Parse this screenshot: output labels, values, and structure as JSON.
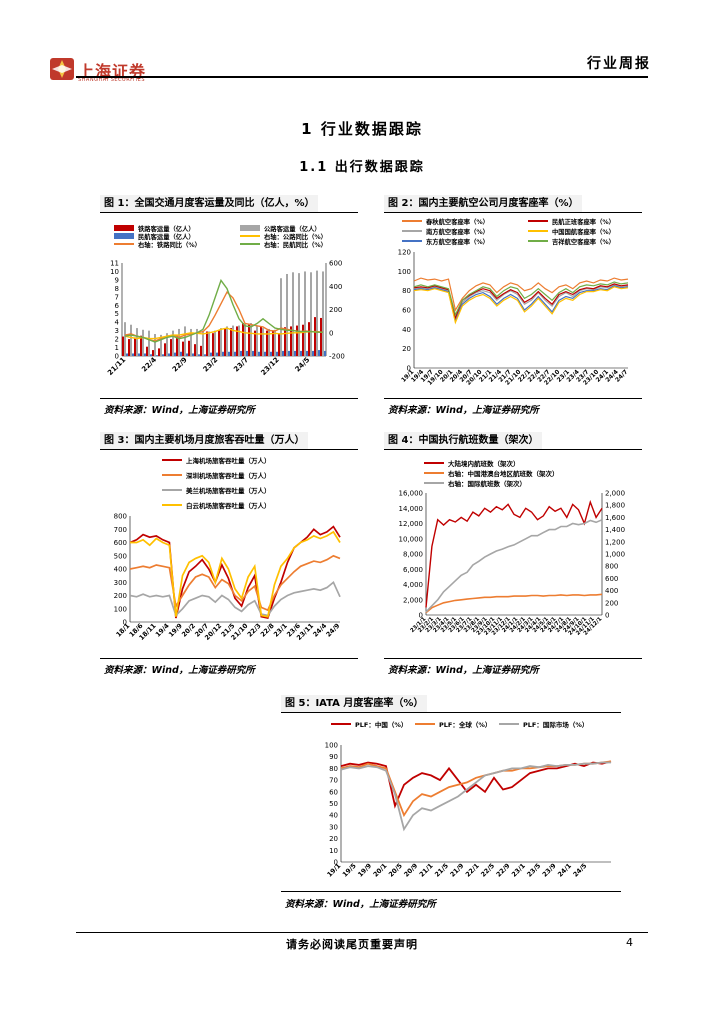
{
  "header": {
    "brand_cn": "上海证券",
    "brand_en": "SHANGHAI SECURITIES",
    "report_type": "行业周报",
    "brand_color": "#c0392b"
  },
  "section": {
    "title": "1  行业数据跟踪",
    "subtitle": "1.1  出行数据跟踪"
  },
  "footer": {
    "disclaimer": "请务必阅读尾页重要声明",
    "page": "4"
  },
  "figures": [
    {
      "title": "图 1：全国交通月度客运量及同比（亿人，%）",
      "source": "资料来源：Wind，上海证券研究所"
    },
    {
      "title": "图 2：国内主要航空公司月度客座率（%）",
      "source": "资料来源：Wind，上海证券研究所"
    },
    {
      "title": "图 3：国内主要机场月度旅客吞吐量（万人）",
      "source": "资料来源：Wind，上海证券研究所"
    },
    {
      "title": "图 4：中国执行航班数量（架次）",
      "source": "资料来源：Wind，上海证券研究所"
    },
    {
      "title": "图 5：IATA 月度客座率（%）",
      "source": "资料来源：Wind，上海证券研究所"
    }
  ],
  "chart_data": [
    {
      "type": "bar",
      "legend": [
        "铁路客运量（亿人）",
        "公路客运量（亿人）",
        "民航客运量（亿人）",
        "右轴：铁路同比（%）",
        "右轴：公路同比（%）",
        "右轴：民航同比（%）"
      ],
      "colors": [
        "#c00000",
        "#a6a6a6",
        "#4472c4",
        "#ed7d31",
        "#ffc000",
        "#70ad47"
      ],
      "x_ticks": [
        "21/11",
        "22/4",
        "22/9",
        "23/2",
        "23/7",
        "23/12",
        "24/5"
      ],
      "ylim_left": [
        0,
        11
      ],
      "yticks_left": [
        0,
        1,
        2,
        3,
        4,
        5,
        6,
        7,
        8,
        9,
        10,
        11
      ],
      "ylim_right": [
        -200,
        600
      ],
      "yticks_right": [
        -200,
        0,
        200,
        400,
        600
      ],
      "series": [
        {
          "name": "铁路客运量（亿人）",
          "values": [
            2.3,
            2.0,
            2.2,
            2.4,
            1.1,
            0.7,
            0.9,
            1.5,
            2.0,
            2.4,
            1.7,
            1.8,
            1.4,
            1.2,
            2.9,
            2.7,
            3.0,
            3.2,
            3.3,
            3.5,
            3.9,
            3.8,
            3.0,
            3.5,
            3.0,
            2.9,
            2.7,
            3.4,
            3.5,
            3.6,
            3.7,
            4.0,
            4.6,
            4.5
          ]
        },
        {
          "name": "公路客运量（亿人）",
          "values": [
            4.0,
            3.7,
            3.3,
            3.1,
            3.0,
            2.6,
            2.5,
            2.7,
            3.0,
            3.2,
            3.5,
            3.2,
            3.2,
            3.0,
            2.9,
            3.0,
            3.3,
            3.5,
            3.6,
            3.6,
            3.8,
            3.9,
            3.6,
            3.3,
            3.2,
            3.1,
            9.2,
            9.7,
            9.9,
            9.8,
            10.0,
            9.9,
            10.1,
            10.0
          ]
        },
        {
          "name": "民航客运量（亿人）",
          "values": [
            0.3,
            0.3,
            0.3,
            0.3,
            0.2,
            0.1,
            0.2,
            0.3,
            0.4,
            0.5,
            0.3,
            0.3,
            0.2,
            0.2,
            0.4,
            0.4,
            0.5,
            0.5,
            0.5,
            0.6,
            0.6,
            0.6,
            0.5,
            0.5,
            0.5,
            0.5,
            0.6,
            0.6,
            0.6,
            0.6,
            0.6,
            0.6,
            0.7,
            0.6
          ]
        },
        {
          "name": "右轴：铁路同比（%）",
          "values": [
            -20,
            -10,
            -30,
            -40,
            -60,
            -70,
            -50,
            -30,
            -20,
            -40,
            -20,
            -10,
            0,
            10,
            60,
            150,
            250,
            350,
            300,
            200,
            80,
            70,
            60,
            50,
            20,
            15,
            40,
            30,
            20,
            10,
            15,
            10,
            10,
            5
          ]
        },
        {
          "name": "右轴：公路同比（%）",
          "values": [
            -30,
            -40,
            -50,
            -40,
            -50,
            -50,
            -40,
            -30,
            -20,
            -20,
            -10,
            0,
            -5,
            -10,
            0,
            10,
            30,
            40,
            20,
            10,
            0,
            -5,
            -10,
            -10,
            -10,
            -5,
            -10,
            -5,
            0,
            0,
            5,
            10,
            5,
            5
          ]
        },
        {
          "name": "右轴：民航同比（%）",
          "values": [
            -30,
            -20,
            -30,
            -40,
            -60,
            -80,
            -60,
            -40,
            -30,
            -50,
            -40,
            -20,
            0,
            30,
            150,
            300,
            450,
            380,
            240,
            120,
            60,
            50,
            80,
            120,
            80,
            40,
            30,
            20,
            20,
            10,
            10,
            10,
            5,
            5
          ]
        }
      ]
    },
    {
      "type": "line",
      "legend": [
        "春秋航空客座率（%）",
        "南方航空客座率（%）",
        "东方航空客座率（%）",
        "民航正班客座率（%）",
        "中国国航客座率（%）",
        "吉祥航空客座率（%）"
      ],
      "colors": [
        "#ed7d31",
        "#a6a6a6",
        "#4472c4",
        "#c00000",
        "#ffc000",
        "#70ad47"
      ],
      "x_ticks": [
        "19/1",
        "19/4",
        "19/7",
        "19/10",
        "20/1",
        "20/4",
        "20/7",
        "20/10",
        "21/1",
        "21/4",
        "21/7",
        "21/10",
        "22/1",
        "22/4",
        "22/7",
        "22/10",
        "23/1",
        "23/4",
        "23/7",
        "23/10",
        "24/1",
        "24/4",
        "24/7"
      ],
      "ylim": [
        0,
        120
      ],
      "yticks": [
        0,
        20,
        40,
        60,
        80,
        100,
        120
      ],
      "series": [
        {
          "name": "春秋航空客座率（%）",
          "values": [
            90,
            93,
            91,
            92,
            90,
            92,
            60,
            72,
            80,
            85,
            88,
            86,
            78,
            84,
            88,
            86,
            80,
            82,
            88,
            82,
            78,
            84,
            86,
            82,
            88,
            90,
            88,
            91,
            90,
            93,
            91,
            92
          ]
        },
        {
          "name": "南方航空客座率（%）",
          "values": [
            82,
            83,
            82,
            84,
            82,
            80,
            50,
            68,
            74,
            78,
            80,
            78,
            70,
            76,
            80,
            76,
            66,
            70,
            78,
            70,
            64,
            74,
            78,
            74,
            80,
            82,
            81,
            84,
            83,
            86,
            84,
            85
          ]
        },
        {
          "name": "东方航空客座率（%）",
          "values": [
            81,
            82,
            81,
            83,
            81,
            79,
            48,
            66,
            72,
            76,
            78,
            74,
            66,
            72,
            76,
            72,
            60,
            66,
            74,
            66,
            58,
            70,
            74,
            72,
            78,
            80,
            80,
            82,
            81,
            85,
            83,
            84
          ]
        },
        {
          "name": "民航正班客座率（%）",
          "values": [
            83,
            84,
            83,
            85,
            83,
            81,
            52,
            70,
            75,
            79,
            82,
            80,
            72,
            77,
            81,
            78,
            68,
            72,
            79,
            72,
            66,
            76,
            79,
            76,
            81,
            83,
            82,
            85,
            84,
            87,
            85,
            86
          ]
        },
        {
          "name": "中国国航客座率（%）",
          "values": [
            80,
            81,
            80,
            82,
            80,
            78,
            47,
            64,
            70,
            74,
            76,
            72,
            64,
            70,
            74,
            70,
            58,
            64,
            72,
            64,
            56,
            68,
            72,
            70,
            76,
            79,
            79,
            81,
            80,
            84,
            82,
            83
          ]
        },
        {
          "name": "吉祥航空客座率（%）",
          "values": [
            84,
            86,
            84,
            86,
            84,
            82,
            55,
            70,
            76,
            80,
            84,
            82,
            74,
            80,
            84,
            82,
            72,
            76,
            82,
            76,
            70,
            78,
            82,
            78,
            84,
            86,
            85,
            87,
            86,
            89,
            87,
            88
          ]
        }
      ]
    },
    {
      "type": "line",
      "legend": [
        "上海机场旅客吞吐量（万人）",
        "深圳机场旅客吞吐量（万人）",
        "美兰机场旅客吞吐量（万人）",
        "白云机场旅客吞吐量（万人）"
      ],
      "colors": [
        "#c00000",
        "#ed7d31",
        "#a6a6a6",
        "#ffc000"
      ],
      "x_ticks": [
        "18/1",
        "18/6",
        "18/11",
        "19/4",
        "19/9",
        "20/2",
        "20/7",
        "20/12",
        "21/5",
        "21/10",
        "22/3",
        "22/8",
        "23/1",
        "23/6",
        "23/11",
        "24/4",
        "24/9"
      ],
      "ylim": [
        0,
        800
      ],
      "yticks": [
        0,
        100,
        200,
        300,
        400,
        500,
        600,
        700,
        800
      ],
      "series": [
        {
          "name": "上海机场旅客吞吐量（万人）",
          "values": [
            600,
            620,
            660,
            640,
            650,
            620,
            600,
            30,
            250,
            380,
            420,
            470,
            400,
            300,
            430,
            330,
            180,
            120,
            260,
            350,
            40,
            30,
            180,
            300,
            450,
            560,
            600,
            640,
            700,
            660,
            680,
            720,
            640
          ]
        },
        {
          "name": "深圳机场旅客吞吐量（万人）",
          "values": [
            400,
            410,
            420,
            410,
            430,
            420,
            410,
            120,
            200,
            280,
            340,
            360,
            340,
            260,
            320,
            290,
            200,
            160,
            230,
            270,
            110,
            90,
            200,
            280,
            330,
            380,
            420,
            440,
            460,
            450,
            470,
            500,
            480
          ]
        },
        {
          "name": "美兰机场旅客吞吐量（万人）",
          "values": [
            200,
            190,
            210,
            190,
            200,
            190,
            200,
            50,
            100,
            160,
            180,
            200,
            190,
            150,
            200,
            170,
            110,
            80,
            130,
            160,
            60,
            50,
            120,
            170,
            200,
            220,
            230,
            240,
            250,
            240,
            260,
            300,
            190
          ]
        },
        {
          "name": "白云机场旅客吞吐量（万人）",
          "values": [
            600,
            600,
            620,
            580,
            630,
            600,
            580,
            40,
            350,
            450,
            480,
            500,
            450,
            300,
            480,
            400,
            250,
            180,
            340,
            420,
            50,
            40,
            280,
            420,
            480,
            560,
            600,
            620,
            650,
            630,
            650,
            680,
            600
          ]
        }
      ]
    },
    {
      "type": "line",
      "legend": [
        "大陆境内航班数（架次）",
        "右轴：中国港澳台地区航班数（架次）",
        "右轴：国际航班数（架次）"
      ],
      "colors": [
        "#c00000",
        "#ed7d31",
        "#a6a6a6"
      ],
      "x_ticks": [
        "23/1/1",
        "23/2/1",
        "23/3/1",
        "23/4/1",
        "23/5/1",
        "23/6/1",
        "23/7/1",
        "23/8/1",
        "23/9/1",
        "23/10/1",
        "23/11/1",
        "23/12/1",
        "24/1/1",
        "24/2/1",
        "24/3/1",
        "24/4/1",
        "24/5/1",
        "24/6/1",
        "24/7/1",
        "24/8/1",
        "24/9/1",
        "24/10/1",
        "24/11/1",
        "24/12/1"
      ],
      "ylim_left": [
        0,
        16000
      ],
      "yticks_left": [
        0,
        2000,
        4000,
        6000,
        8000,
        10000,
        12000,
        14000,
        16000
      ],
      "ylim_right": [
        0,
        2000
      ],
      "yticks_right": [
        0,
        200,
        400,
        600,
        800,
        1000,
        1200,
        1400,
        1600,
        1800,
        2000
      ],
      "series": [
        {
          "name": "大陆境内航班数（架次）",
          "values": [
            1000,
            9000,
            12500,
            11800,
            12500,
            12200,
            12800,
            12300,
            13500,
            13000,
            14000,
            13500,
            14200,
            13800,
            14500,
            13200,
            12800,
            14000,
            13500,
            12500,
            13000,
            14200,
            13600,
            14000,
            12800,
            14500,
            13800,
            12000,
            14800,
            12800,
            14000
          ]
        },
        {
          "name": "右轴：中国港澳台地区航班数（架次）",
          "values": [
            40,
            120,
            160,
            200,
            220,
            240,
            250,
            260,
            270,
            280,
            290,
            290,
            300,
            300,
            300,
            310,
            310,
            310,
            320,
            320,
            310,
            320,
            320,
            330,
            320,
            330,
            330,
            320,
            330,
            330,
            340
          ]
        },
        {
          "name": "右轴：国际航班数（架次）",
          "values": [
            50,
            150,
            250,
            380,
            470,
            560,
            650,
            700,
            820,
            880,
            950,
            1000,
            1050,
            1080,
            1120,
            1150,
            1200,
            1250,
            1300,
            1300,
            1350,
            1400,
            1400,
            1450,
            1450,
            1500,
            1480,
            1500,
            1550,
            1520,
            1560
          ]
        }
      ]
    },
    {
      "type": "line",
      "legend": [
        "PLF：中国（%）",
        "PLF：全球（%）",
        "PLF：国际市场（%）"
      ],
      "colors": [
        "#c00000",
        "#ed7d31",
        "#a6a6a6"
      ],
      "x_ticks": [
        "19/1",
        "19/5",
        "19/9",
        "20/1",
        "20/5",
        "20/9",
        "21/1",
        "21/5",
        "21/9",
        "22/1",
        "22/5",
        "22/9",
        "23/1",
        "23/5",
        "23/9",
        "24/1",
        "24/5"
      ],
      "ylim": [
        0,
        100
      ],
      "yticks": [
        0,
        10,
        20,
        30,
        40,
        50,
        60,
        70,
        80,
        90,
        100
      ],
      "series": [
        {
          "name": "PLF：中国（%）",
          "values": [
            82,
            84,
            83,
            85,
            84,
            82,
            48,
            66,
            72,
            76,
            74,
            70,
            80,
            70,
            60,
            66,
            60,
            72,
            62,
            64,
            70,
            76,
            78,
            80,
            80,
            82,
            84,
            82,
            85,
            84,
            86
          ]
        },
        {
          "name": "PLF：全球（%）",
          "values": [
            80,
            82,
            81,
            84,
            82,
            80,
            60,
            40,
            52,
            58,
            56,
            60,
            64,
            66,
            68,
            72,
            74,
            76,
            78,
            78,
            80,
            80,
            81,
            82,
            82,
            83,
            83,
            84,
            84,
            85,
            86
          ]
        },
        {
          "name": "PLF：国际市场（%）",
          "values": [
            79,
            81,
            80,
            82,
            81,
            78,
            58,
            28,
            40,
            46,
            44,
            48,
            52,
            56,
            62,
            68,
            74,
            76,
            78,
            80,
            80,
            82,
            81,
            83,
            82,
            83,
            83,
            84,
            84,
            85,
            85
          ]
        }
      ]
    }
  ]
}
